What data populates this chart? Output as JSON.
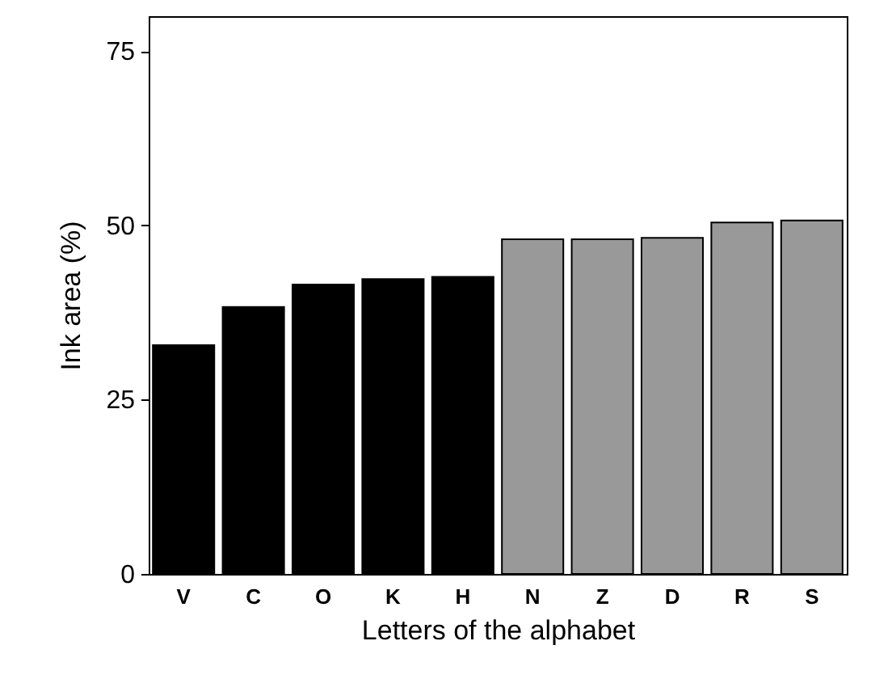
{
  "chart_data": {
    "type": "bar",
    "xlabel": "Letters of the alphabet",
    "ylabel": "Ink area (%)",
    "categories": [
      "V",
      "C",
      "O",
      "K",
      "H",
      "N",
      "Z",
      "D",
      "R",
      "S"
    ],
    "values": [
      32.8,
      38.3,
      41.5,
      42.3,
      42.6,
      48.0,
      48.0,
      48.2,
      50.4,
      50.7
    ],
    "colors": [
      "#000000",
      "#000000",
      "#000000",
      "#000000",
      "#000000",
      "#999999",
      "#999999",
      "#999999",
      "#999999",
      "#999999"
    ],
    "ylim": [
      0,
      80
    ],
    "yticks": [
      0,
      25,
      50,
      75
    ],
    "grid": false
  }
}
